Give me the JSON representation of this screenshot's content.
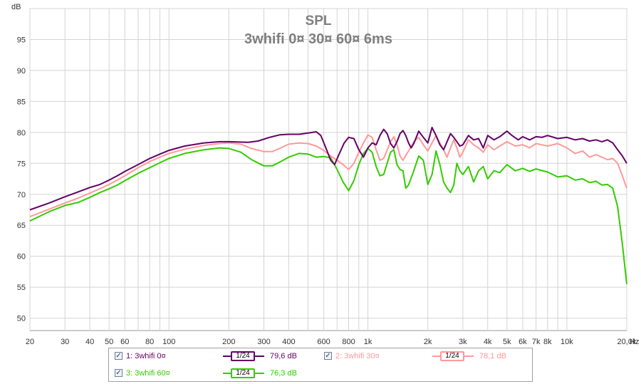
{
  "chart_data": {
    "type": "line",
    "title": "SPL",
    "subtitle": "3whifi 0¤ 30¤ 60¤ 6ms",
    "ylabel": "dB",
    "xlabel": "Hz",
    "x_scale": "log",
    "xlim": [
      20,
      20000
    ],
    "ylim": [
      48,
      100
    ],
    "grid": true,
    "y_ticks": [
      50,
      55,
      60,
      65,
      70,
      75,
      80,
      85,
      90,
      95
    ],
    "x_ticks": [
      {
        "v": 20,
        "label": "20"
      },
      {
        "v": 30,
        "label": "30"
      },
      {
        "v": 40,
        "label": "40"
      },
      {
        "v": 50,
        "label": "50"
      },
      {
        "v": 60,
        "label": "60"
      },
      {
        "v": 80,
        "label": "80"
      },
      {
        "v": 100,
        "label": "100"
      },
      {
        "v": 200,
        "label": "200"
      },
      {
        "v": 300,
        "label": "300"
      },
      {
        "v": 400,
        "label": "400"
      },
      {
        "v": 600,
        "label": "600"
      },
      {
        "v": 800,
        "label": "800"
      },
      {
        "v": 1000,
        "label": "1k"
      },
      {
        "v": 2000,
        "label": "2k"
      },
      {
        "v": 3000,
        "label": "3k"
      },
      {
        "v": 4000,
        "label": "4k"
      },
      {
        "v": 5000,
        "label": "5k"
      },
      {
        "v": 6000,
        "label": "6k"
      },
      {
        "v": 7000,
        "label": "7k"
      },
      {
        "v": 8000,
        "label": "8k"
      },
      {
        "v": 10000,
        "label": "10k"
      },
      {
        "v": 20000,
        "label": "20,0k"
      }
    ],
    "legend_position": "bottom",
    "series": [
      {
        "name": "1: 3whifi 0¤",
        "color": "#660066",
        "smoothing": "1/24",
        "value_label": "79,6 dB",
        "points": [
          [
            20,
            67.5
          ],
          [
            25,
            68.6
          ],
          [
            30,
            69.6
          ],
          [
            35,
            70.4
          ],
          [
            40,
            71.1
          ],
          [
            45,
            71.6
          ],
          [
            50,
            72.3
          ],
          [
            55,
            73.0
          ],
          [
            60,
            73.7
          ],
          [
            70,
            74.8
          ],
          [
            80,
            75.8
          ],
          [
            90,
            76.5
          ],
          [
            100,
            77.1
          ],
          [
            120,
            77.8
          ],
          [
            150,
            78.3
          ],
          [
            180,
            78.5
          ],
          [
            200,
            78.5
          ],
          [
            250,
            78.4
          ],
          [
            280,
            78.6
          ],
          [
            320,
            79.2
          ],
          [
            360,
            79.6
          ],
          [
            400,
            79.7
          ],
          [
            450,
            79.7
          ],
          [
            500,
            79.9
          ],
          [
            550,
            80.1
          ],
          [
            580,
            79.5
          ],
          [
            620,
            77.2
          ],
          [
            650,
            75.5
          ],
          [
            680,
            74.8
          ],
          [
            710,
            76.2
          ],
          [
            760,
            78.3
          ],
          [
            800,
            79.2
          ],
          [
            850,
            79.0
          ],
          [
            900,
            77.2
          ],
          [
            950,
            76.0
          ],
          [
            1000,
            77.5
          ],
          [
            1050,
            78.3
          ],
          [
            1100,
            78.0
          ],
          [
            1150,
            79.5
          ],
          [
            1200,
            80.5
          ],
          [
            1250,
            79.8
          ],
          [
            1300,
            78.2
          ],
          [
            1350,
            77.5
          ],
          [
            1400,
            78.5
          ],
          [
            1450,
            79.8
          ],
          [
            1500,
            80.3
          ],
          [
            1550,
            79.5
          ],
          [
            1600,
            78.3
          ],
          [
            1650,
            77.5
          ],
          [
            1700,
            78.2
          ],
          [
            1800,
            80.2
          ],
          [
            1900,
            79.2
          ],
          [
            2000,
            78.3
          ],
          [
            2100,
            80.8
          ],
          [
            2200,
            79.5
          ],
          [
            2300,
            78.0
          ],
          [
            2400,
            77.2
          ],
          [
            2500,
            78.5
          ],
          [
            2600,
            79.8
          ],
          [
            2700,
            79.2
          ],
          [
            2800,
            78.5
          ],
          [
            2900,
            77.8
          ],
          [
            3000,
            78.0
          ],
          [
            3200,
            79.5
          ],
          [
            3400,
            78.8
          ],
          [
            3600,
            79.0
          ],
          [
            3800,
            77.5
          ],
          [
            4000,
            79.5
          ],
          [
            4300,
            78.8
          ],
          [
            4600,
            79.3
          ],
          [
            5000,
            80.2
          ],
          [
            5300,
            79.5
          ],
          [
            5700,
            78.8
          ],
          [
            6000,
            79.3
          ],
          [
            6500,
            78.8
          ],
          [
            7000,
            79.3
          ],
          [
            7500,
            79.2
          ],
          [
            8000,
            79.5
          ],
          [
            9000,
            79.0
          ],
          [
            10000,
            79.2
          ],
          [
            11000,
            78.8
          ],
          [
            12000,
            79.0
          ],
          [
            13000,
            78.6
          ],
          [
            14000,
            78.8
          ],
          [
            15000,
            78.5
          ],
          [
            16000,
            78.8
          ],
          [
            17000,
            78.3
          ],
          [
            18000,
            77.2
          ],
          [
            19000,
            76.2
          ],
          [
            20000,
            75.0
          ]
        ]
      },
      {
        "name": "2: 3whifi 30¤",
        "color": "#ff9999",
        "smoothing": "1/24",
        "value_label": "78,1 dB",
        "points": [
          [
            20,
            66.4
          ],
          [
            25,
            67.6
          ],
          [
            30,
            68.6
          ],
          [
            35,
            69.4
          ],
          [
            40,
            70.2
          ],
          [
            45,
            70.9
          ],
          [
            50,
            71.6
          ],
          [
            55,
            72.3
          ],
          [
            60,
            73.0
          ],
          [
            70,
            74.3
          ],
          [
            80,
            75.3
          ],
          [
            90,
            76.0
          ],
          [
            100,
            76.6
          ],
          [
            120,
            77.3
          ],
          [
            150,
            77.9
          ],
          [
            180,
            78.2
          ],
          [
            200,
            78.3
          ],
          [
            230,
            78.1
          ],
          [
            260,
            77.4
          ],
          [
            300,
            76.9
          ],
          [
            330,
            76.9
          ],
          [
            360,
            77.4
          ],
          [
            400,
            78.1
          ],
          [
            450,
            78.3
          ],
          [
            500,
            78.2
          ],
          [
            550,
            77.8
          ],
          [
            600,
            77.1
          ],
          [
            650,
            76.2
          ],
          [
            700,
            75.5
          ],
          [
            750,
            74.8
          ],
          [
            800,
            74.0
          ],
          [
            850,
            75.0
          ],
          [
            900,
            76.8
          ],
          [
            950,
            78.3
          ],
          [
            1000,
            79.6
          ],
          [
            1050,
            79.2
          ],
          [
            1100,
            77.2
          ],
          [
            1150,
            75.5
          ],
          [
            1200,
            75.8
          ],
          [
            1300,
            78.5
          ],
          [
            1350,
            79.3
          ],
          [
            1400,
            78.0
          ],
          [
            1450,
            76.2
          ],
          [
            1500,
            75.5
          ],
          [
            1600,
            77.0
          ],
          [
            1700,
            78.5
          ],
          [
            1800,
            79.2
          ],
          [
            1900,
            78.0
          ],
          [
            2000,
            77.0
          ],
          [
            2100,
            78.3
          ],
          [
            2200,
            79.5
          ],
          [
            2300,
            78.3
          ],
          [
            2400,
            77.2
          ],
          [
            2500,
            76.0
          ],
          [
            2600,
            77.5
          ],
          [
            2700,
            78.8
          ],
          [
            2800,
            77.5
          ],
          [
            2900,
            76.0
          ],
          [
            3000,
            76.8
          ],
          [
            3200,
            78.8
          ],
          [
            3400,
            78.0
          ],
          [
            3600,
            77.5
          ],
          [
            3800,
            76.8
          ],
          [
            4000,
            78.0
          ],
          [
            4300,
            77.2
          ],
          [
            4600,
            77.8
          ],
          [
            5000,
            78.5
          ],
          [
            5500,
            77.8
          ],
          [
            6000,
            78.0
          ],
          [
            6500,
            77.5
          ],
          [
            7000,
            78.2
          ],
          [
            8000,
            77.8
          ],
          [
            9000,
            78.2
          ],
          [
            10000,
            77.5
          ],
          [
            11000,
            76.6
          ],
          [
            12000,
            77.0
          ],
          [
            13000,
            76.0
          ],
          [
            14000,
            76.4
          ],
          [
            15000,
            76.0
          ],
          [
            16000,
            75.6
          ],
          [
            17000,
            75.8
          ],
          [
            18000,
            75.0
          ],
          [
            19000,
            73.0
          ],
          [
            20000,
            71.0
          ]
        ]
      },
      {
        "name": "3: 3whifi 60¤",
        "color": "#33cc00",
        "smoothing": "1/24",
        "value_label": "76,3 dB",
        "points": [
          [
            20,
            65.7
          ],
          [
            25,
            67.2
          ],
          [
            30,
            68.2
          ],
          [
            35,
            68.7
          ],
          [
            40,
            69.5
          ],
          [
            45,
            70.3
          ],
          [
            50,
            70.9
          ],
          [
            55,
            71.5
          ],
          [
            60,
            72.2
          ],
          [
            70,
            73.4
          ],
          [
            80,
            74.3
          ],
          [
            90,
            75.1
          ],
          [
            100,
            75.8
          ],
          [
            120,
            76.6
          ],
          [
            150,
            77.2
          ],
          [
            180,
            77.5
          ],
          [
            200,
            77.4
          ],
          [
            230,
            76.8
          ],
          [
            260,
            75.6
          ],
          [
            300,
            74.6
          ],
          [
            330,
            74.6
          ],
          [
            360,
            75.2
          ],
          [
            400,
            76.0
          ],
          [
            450,
            76.6
          ],
          [
            500,
            76.5
          ],
          [
            550,
            76.0
          ],
          [
            600,
            76.1
          ],
          [
            650,
            75.9
          ],
          [
            700,
            74.0
          ],
          [
            750,
            72.0
          ],
          [
            800,
            70.6
          ],
          [
            850,
            72.2
          ],
          [
            900,
            74.8
          ],
          [
            950,
            76.6
          ],
          [
            1000,
            77.4
          ],
          [
            1050,
            76.8
          ],
          [
            1100,
            74.5
          ],
          [
            1150,
            73.0
          ],
          [
            1200,
            73.2
          ],
          [
            1300,
            76.8
          ],
          [
            1350,
            77.2
          ],
          [
            1400,
            74.8
          ],
          [
            1450,
            74.0
          ],
          [
            1500,
            73.8
          ],
          [
            1550,
            71.0
          ],
          [
            1600,
            71.5
          ],
          [
            1700,
            73.8
          ],
          [
            1800,
            76.2
          ],
          [
            1900,
            75.5
          ],
          [
            2000,
            71.6
          ],
          [
            2100,
            73.2
          ],
          [
            2200,
            77.0
          ],
          [
            2300,
            74.8
          ],
          [
            2400,
            72.0
          ],
          [
            2500,
            71.0
          ],
          [
            2600,
            70.3
          ],
          [
            2700,
            71.5
          ],
          [
            2800,
            75.0
          ],
          [
            2900,
            73.8
          ],
          [
            3000,
            73.2
          ],
          [
            3200,
            74.5
          ],
          [
            3400,
            72.0
          ],
          [
            3600,
            73.8
          ],
          [
            3800,
            74.5
          ],
          [
            4000,
            72.5
          ],
          [
            4300,
            73.8
          ],
          [
            4600,
            73.5
          ],
          [
            5000,
            74.8
          ],
          [
            5500,
            73.8
          ],
          [
            6000,
            74.2
          ],
          [
            6500,
            73.7
          ],
          [
            7000,
            74.1
          ],
          [
            8000,
            73.6
          ],
          [
            9000,
            72.8
          ],
          [
            10000,
            73.0
          ],
          [
            11000,
            72.3
          ],
          [
            12000,
            72.5
          ],
          [
            13000,
            71.9
          ],
          [
            14000,
            72.1
          ],
          [
            15000,
            71.5
          ],
          [
            16000,
            71.6
          ],
          [
            17000,
            71.0
          ],
          [
            18000,
            68.0
          ],
          [
            19000,
            62.0
          ],
          [
            20000,
            55.5
          ]
        ]
      }
    ]
  }
}
